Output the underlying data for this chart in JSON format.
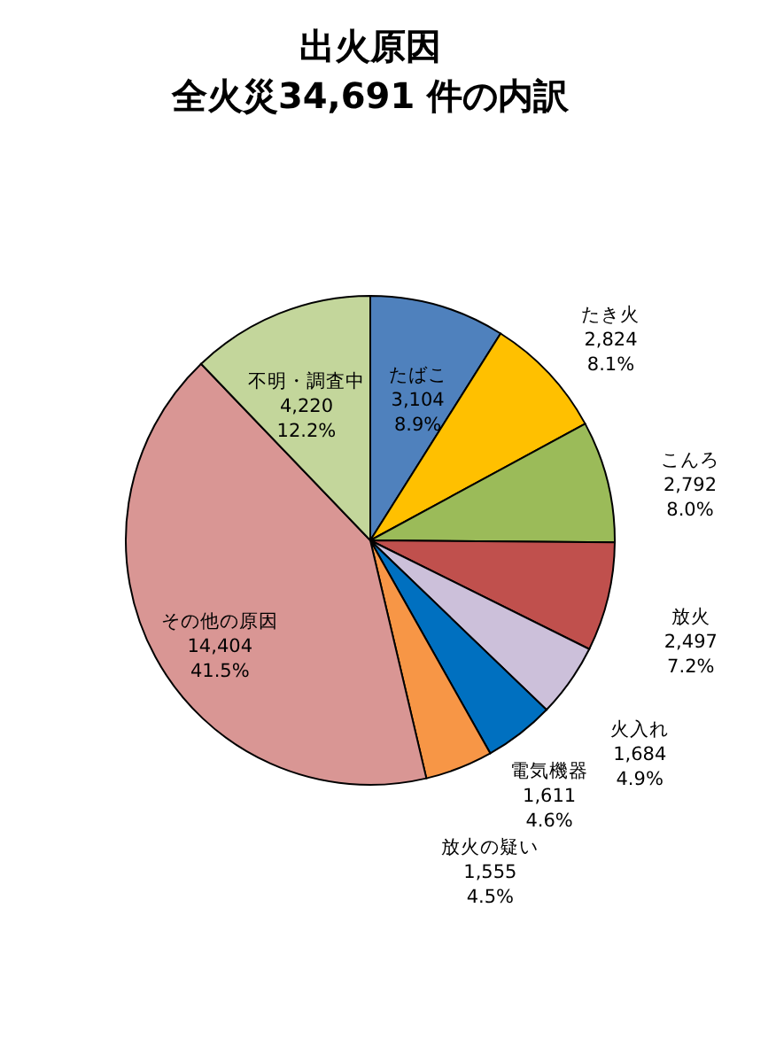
{
  "chart_data": {
    "type": "pie",
    "title": "出火原因",
    "subtitle": "全火災34,691 件の内訳",
    "categories": [
      "たばこ",
      "たき火",
      "こんろ",
      "放火",
      "火入れ",
      "電気機器",
      "放火の疑い",
      "その他の原因",
      "不明・調査中"
    ],
    "values": [
      3104,
      2824,
      2792,
      2497,
      1684,
      1611,
      1555,
      14404,
      4220
    ],
    "colors": [
      "#4f81bd",
      "#ffc000",
      "#9bbb59",
      "#c0504d",
      "#ccc0da",
      "#0070c0",
      "#f79646",
      "#d99694",
      "#c3d69b"
    ],
    "value_labels": [
      "3,104\n8.9%",
      "2,824\n8.1%",
      "2,792\n8.0%",
      "2,497\n7.2%",
      "1,684\n4.9%",
      "1,611\n4.6%",
      "1,555\n4.5%",
      "14,404\n41.5%",
      "4,220\n12.2%"
    ],
    "legend": false
  }
}
